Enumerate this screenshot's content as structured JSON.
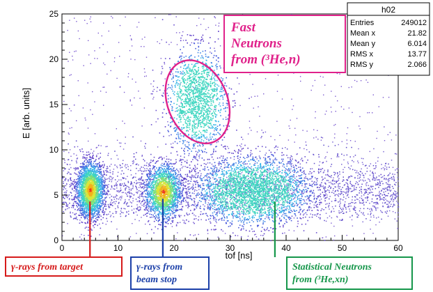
{
  "chart_data": {
    "type": "heatmap",
    "histogram_name": "h02",
    "xlabel": "tof [ns]",
    "ylabel": "E [arb. units]",
    "xlim": [
      0,
      60
    ],
    "ylim": [
      0,
      25
    ],
    "x_ticks": [
      "0",
      "10",
      "20",
      "30",
      "40",
      "50",
      "60"
    ],
    "y_ticks": [
      "0",
      "5",
      "10",
      "15",
      "20",
      "25"
    ],
    "stats": [
      {
        "label": "Entries",
        "value": "249012"
      },
      {
        "label": "Mean x",
        "value": "21.82"
      },
      {
        "label": "Mean y",
        "value": "6.014"
      },
      {
        "label": "RMS x",
        "value": "13.77"
      },
      {
        "label": "RMS y",
        "value": "2.066"
      }
    ],
    "clusters": [
      {
        "x": 5,
        "y": 5.6,
        "sx": 1.2,
        "sy": 1.5,
        "n": 2200
      },
      {
        "x": 18,
        "y": 5.4,
        "sx": 1.6,
        "sy": 1.5,
        "n": 1600
      },
      {
        "x": 34,
        "y": 5.5,
        "sx": 5.0,
        "sy": 1.8,
        "n": 2600
      },
      {
        "x": 24,
        "y": 15.5,
        "sx": 2.6,
        "sy": 2.8,
        "n": 1500
      }
    ],
    "annotations": [
      {
        "lines": [
          "Fast",
          "Neutrons",
          "from (³He,n)"
        ],
        "color": "#e0218a",
        "x": 35,
        "y": 22.5
      },
      {
        "lines": [
          "γ-rays from target"
        ],
        "color": "#d61a1a",
        "x": 5,
        "y": -2.4
      },
      {
        "lines": [
          "γ-rays from",
          "beam stop"
        ],
        "color": "#1b3fa8",
        "x": 18,
        "y": -2.4
      },
      {
        "lines": [
          "Statistical Neutrons",
          "from (³He,xn)"
        ],
        "color": "#15964a",
        "x": 38,
        "y": -2.4
      }
    ]
  }
}
